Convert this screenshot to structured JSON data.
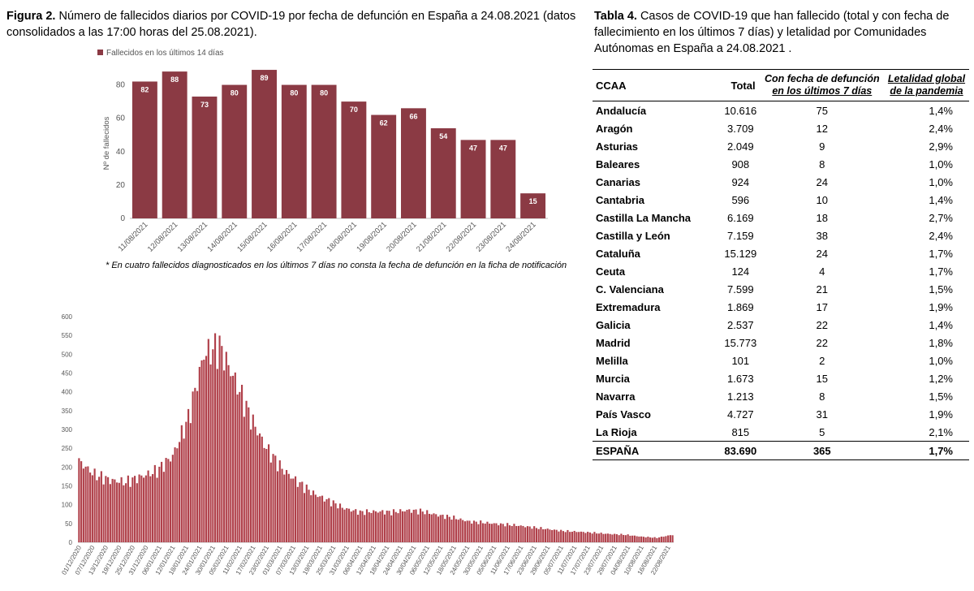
{
  "figure": {
    "label": "Figura 2.",
    "title": "Número de fallecidos diarios por COVID-19 por fecha de defunción en España a 24.08.2021 (datos consolidados a las 17:00 horas del 25.08.2021).",
    "footnote": "* En cuatro fallecidos diagnosticados en los últimos 7 días no consta la fecha de defunción en la ficha de notificación"
  },
  "table": {
    "label": "Tabla 4.",
    "title": "Casos de COVID-19 que han fallecido (total y con fecha de fallecimiento en los últimos 7 días) y letalidad por Comunidades Autónomas en España a 24.08.2021 .",
    "headers": {
      "ccaa": "CCAA",
      "total": "Total",
      "col3_line1": "Con fecha de defunción",
      "col3_line2": "en los últimos 7 días",
      "col4_line1": "Letalidad global",
      "col4_line2": "de la pandemia"
    },
    "rows": [
      {
        "name": "Andalucía",
        "total": "10.616",
        "last7": "75",
        "let": "1,4%"
      },
      {
        "name": "Aragón",
        "total": "3.709",
        "last7": "12",
        "let": "2,4%"
      },
      {
        "name": "Asturias",
        "total": "2.049",
        "last7": "9",
        "let": "2,9%"
      },
      {
        "name": "Baleares",
        "total": "908",
        "last7": "8",
        "let": "1,0%"
      },
      {
        "name": "Canarias",
        "total": "924",
        "last7": "24",
        "let": "1,0%"
      },
      {
        "name": "Cantabria",
        "total": "596",
        "last7": "10",
        "let": "1,4%"
      },
      {
        "name": "Castilla La Mancha",
        "total": "6.169",
        "last7": "18",
        "let": "2,7%"
      },
      {
        "name": "Castilla y León",
        "total": "7.159",
        "last7": "38",
        "let": "2,4%"
      },
      {
        "name": "Cataluña",
        "total": "15.129",
        "last7": "24",
        "let": "1,7%"
      },
      {
        "name": "Ceuta",
        "total": "124",
        "last7": "4",
        "let": "1,7%"
      },
      {
        "name": "C. Valenciana",
        "total": "7.599",
        "last7": "21",
        "let": "1,5%"
      },
      {
        "name": "Extremadura",
        "total": "1.869",
        "last7": "17",
        "let": "1,9%"
      },
      {
        "name": "Galicia",
        "total": "2.537",
        "last7": "22",
        "let": "1,4%"
      },
      {
        "name": "Madrid",
        "total": "15.773",
        "last7": "22",
        "let": "1,8%"
      },
      {
        "name": "Melilla",
        "total": "101",
        "last7": "2",
        "let": "1,0%"
      },
      {
        "name": "Murcia",
        "total": "1.673",
        "last7": "15",
        "let": "1,2%"
      },
      {
        "name": "Navarra",
        "total": "1.213",
        "last7": "8",
        "let": "1,5%"
      },
      {
        "name": "País Vasco",
        "total": "4.727",
        "last7": "31",
        "let": "1,9%"
      },
      {
        "name": "La Rioja",
        "total": "815",
        "last7": "5",
        "let": "2,1%"
      }
    ],
    "total_row": {
      "name": "ESPAÑA",
      "total": "83.690",
      "last7": "365",
      "let": "1,7%"
    }
  },
  "chart_data": [
    {
      "type": "bar",
      "legend": "Fallecidos en los últimos 14 días",
      "legend_position": "top-left",
      "ylabel": "Nº de fallecidos",
      "ylim": [
        0,
        90
      ],
      "yticks": [
        0,
        20,
        40,
        60,
        80
      ],
      "color": "#8b3a44",
      "categories": [
        "11/08/2021",
        "12/08/2021",
        "13/08/2021",
        "14/08/2021",
        "15/08/2021",
        "16/08/2021",
        "17/08/2021",
        "18/08/2021",
        "19/08/2021",
        "20/08/2021",
        "21/08/2021",
        "22/08/2021",
        "23/08/2021",
        "24/08/2021"
      ],
      "values": [
        82,
        88,
        73,
        80,
        89,
        80,
        80,
        70,
        62,
        66,
        54,
        47,
        47,
        15
      ]
    },
    {
      "type": "bar",
      "ylim": [
        0,
        600
      ],
      "yticks": [
        0,
        50,
        100,
        150,
        200,
        250,
        300,
        350,
        400,
        450,
        500,
        550,
        600
      ],
      "color": "#b0404a",
      "start_date": "2020-12-01",
      "end_date": "2021-08-24",
      "x_tick_labels": [
        "01/12/2020",
        "07/12/2020",
        "13/12/2020",
        "19/12/2020",
        "25/12/2020",
        "31/12/2020",
        "06/01/2021",
        "12/01/2021",
        "18/01/2021",
        "24/01/2021",
        "30/01/2021",
        "05/02/2021",
        "11/02/2021",
        "17/02/2021",
        "23/02/2021",
        "01/03/2021",
        "07/03/2021",
        "13/03/2021",
        "19/03/2021",
        "25/03/2021",
        "31/03/2021",
        "06/04/2021",
        "12/04/2021",
        "18/04/2021",
        "24/04/2021",
        "30/04/2021",
        "06/05/2021",
        "12/05/2021",
        "18/05/2021",
        "24/05/2021",
        "30/05/2021",
        "05/06/2021",
        "11/06/2021",
        "17/06/2021",
        "23/06/2021",
        "29/06/2021",
        "05/07/2021",
        "11/07/2021",
        "17/07/2021",
        "23/07/2021",
        "29/07/2021",
        "04/08/2021",
        "10/08/2021",
        "16/08/2021",
        "22/08/2021"
      ],
      "weekly_avg_values": [
        215,
        180,
        165,
        160,
        175,
        190,
        230,
        330,
        500,
        520,
        430,
        330,
        250,
        195,
        160,
        130,
        110,
        90,
        80,
        82,
        80,
        85,
        82,
        72,
        65,
        55,
        52,
        48,
        45,
        40,
        35,
        30,
        28,
        25,
        22,
        20,
        15,
        12,
        20,
        45,
        65,
        75,
        80,
        70,
        40
      ]
    }
  ]
}
